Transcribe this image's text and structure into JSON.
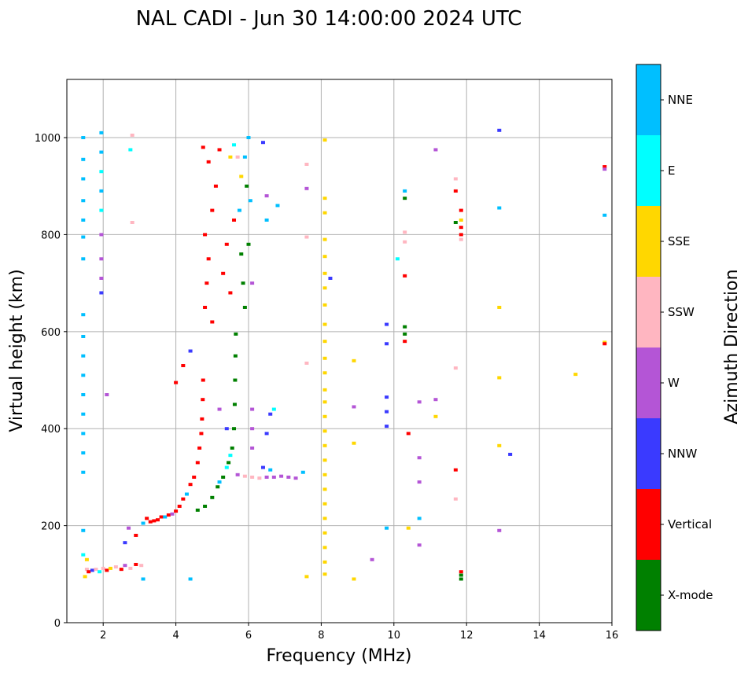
{
  "chart_data": {
    "type": "scatter",
    "title": "NAL CADI - Jun 30 14:00:00 2024 UTC",
    "xlabel": "Frequency (MHz)",
    "ylabel": "Virtual height (km)",
    "xlim": [
      1,
      16
    ],
    "ylim": [
      0,
      1120
    ],
    "xticks": [
      2,
      4,
      6,
      8,
      10,
      12,
      14,
      16
    ],
    "yticks": [
      0,
      200,
      400,
      600,
      800,
      1000
    ],
    "grid": true,
    "colorbar": {
      "title": "Azimuth Direction",
      "categories": [
        {
          "name": "X-mode",
          "color": "#008000"
        },
        {
          "name": "Vertical",
          "color": "#ff0000"
        },
        {
          "name": "NNW",
          "color": "#3a3aff"
        },
        {
          "name": "W",
          "color": "#b455d6"
        },
        {
          "name": "SSW",
          "color": "#ffb6c1"
        },
        {
          "name": "SSE",
          "color": "#ffd700"
        },
        {
          "name": "E",
          "color": "#00ffff"
        },
        {
          "name": "NNE",
          "color": "#00bfff"
        }
      ]
    },
    "points": [
      {
        "x": 1.5,
        "y": 95,
        "c": "SSE"
      },
      {
        "x": 1.55,
        "y": 110,
        "c": "SSW"
      },
      {
        "x": 1.6,
        "y": 105,
        "c": "Vertical"
      },
      {
        "x": 1.7,
        "y": 108,
        "c": "NNW"
      },
      {
        "x": 1.8,
        "y": 110,
        "c": "SSW"
      },
      {
        "x": 1.9,
        "y": 105,
        "c": "E"
      },
      {
        "x": 2.0,
        "y": 112,
        "c": "SSW"
      },
      {
        "x": 2.1,
        "y": 108,
        "c": "Vertical"
      },
      {
        "x": 2.2,
        "y": 112,
        "c": "SSE"
      },
      {
        "x": 2.35,
        "y": 115,
        "c": "SSW"
      },
      {
        "x": 2.5,
        "y": 110,
        "c": "Vertical"
      },
      {
        "x": 2.6,
        "y": 118,
        "c": "W"
      },
      {
        "x": 2.75,
        "y": 112,
        "c": "SSW"
      },
      {
        "x": 2.9,
        "y": 120,
        "c": "Vertical"
      },
      {
        "x": 3.05,
        "y": 118,
        "c": "SSW"
      },
      {
        "x": 1.45,
        "y": 140,
        "c": "E"
      },
      {
        "x": 1.55,
        "y": 130,
        "c": "SSE"
      },
      {
        "x": 2.6,
        "y": 165,
        "c": "NNW"
      },
      {
        "x": 2.7,
        "y": 195,
        "c": "W"
      },
      {
        "x": 2.9,
        "y": 180,
        "c": "Vertical"
      },
      {
        "x": 3.1,
        "y": 205,
        "c": "NNE"
      },
      {
        "x": 3.2,
        "y": 215,
        "c": "Vertical"
      },
      {
        "x": 3.3,
        "y": 208,
        "c": "Vertical"
      },
      {
        "x": 3.4,
        "y": 210,
        "c": "Vertical"
      },
      {
        "x": 3.5,
        "y": 212,
        "c": "Vertical"
      },
      {
        "x": 3.6,
        "y": 218,
        "c": "Vertical"
      },
      {
        "x": 3.7,
        "y": 218,
        "c": "NNE"
      },
      {
        "x": 3.8,
        "y": 222,
        "c": "Vertical"
      },
      {
        "x": 3.9,
        "y": 224,
        "c": "W"
      },
      {
        "x": 4.0,
        "y": 230,
        "c": "Vertical"
      },
      {
        "x": 4.1,
        "y": 240,
        "c": "Vertical"
      },
      {
        "x": 4.2,
        "y": 255,
        "c": "Vertical"
      },
      {
        "x": 4.3,
        "y": 265,
        "c": "NNE"
      },
      {
        "x": 4.4,
        "y": 285,
        "c": "Vertical"
      },
      {
        "x": 4.5,
        "y": 300,
        "c": "Vertical"
      },
      {
        "x": 4.6,
        "y": 330,
        "c": "Vertical"
      },
      {
        "x": 4.65,
        "y": 360,
        "c": "Vertical"
      },
      {
        "x": 4.7,
        "y": 390,
        "c": "Vertical"
      },
      {
        "x": 4.72,
        "y": 420,
        "c": "Vertical"
      },
      {
        "x": 4.74,
        "y": 460,
        "c": "Vertical"
      },
      {
        "x": 4.75,
        "y": 500,
        "c": "Vertical"
      },
      {
        "x": 4.2,
        "y": 530,
        "c": "Vertical"
      },
      {
        "x": 4.4,
        "y": 560,
        "c": "NNW"
      },
      {
        "x": 4.0,
        "y": 495,
        "c": "Vertical"
      },
      {
        "x": 4.6,
        "y": 232,
        "c": "X-mode"
      },
      {
        "x": 4.8,
        "y": 240,
        "c": "X-mode"
      },
      {
        "x": 5.0,
        "y": 258,
        "c": "X-mode"
      },
      {
        "x": 5.15,
        "y": 280,
        "c": "X-mode"
      },
      {
        "x": 5.3,
        "y": 300,
        "c": "X-mode"
      },
      {
        "x": 5.45,
        "y": 330,
        "c": "X-mode"
      },
      {
        "x": 5.55,
        "y": 360,
        "c": "X-mode"
      },
      {
        "x": 5.6,
        "y": 400,
        "c": "X-mode"
      },
      {
        "x": 5.62,
        "y": 450,
        "c": "X-mode"
      },
      {
        "x": 5.63,
        "y": 500,
        "c": "X-mode"
      },
      {
        "x": 5.64,
        "y": 550,
        "c": "X-mode"
      },
      {
        "x": 5.65,
        "y": 595,
        "c": "X-mode"
      },
      {
        "x": 5.2,
        "y": 290,
        "c": "NNE"
      },
      {
        "x": 5.4,
        "y": 320,
        "c": "E"
      },
      {
        "x": 5.5,
        "y": 345,
        "c": "E"
      },
      {
        "x": 5.7,
        "y": 305,
        "c": "W"
      },
      {
        "x": 5.9,
        "y": 302,
        "c": "SSW"
      },
      {
        "x": 6.1,
        "y": 300,
        "c": "SSW"
      },
      {
        "x": 6.3,
        "y": 298,
        "c": "SSW"
      },
      {
        "x": 6.5,
        "y": 300,
        "c": "W"
      },
      {
        "x": 6.7,
        "y": 300,
        "c": "W"
      },
      {
        "x": 6.9,
        "y": 302,
        "c": "W"
      },
      {
        "x": 7.1,
        "y": 300,
        "c": "W"
      },
      {
        "x": 7.3,
        "y": 298,
        "c": "W"
      },
      {
        "x": 7.5,
        "y": 310,
        "c": "NNE"
      },
      {
        "x": 6.4,
        "y": 320,
        "c": "NNW"
      },
      {
        "x": 6.6,
        "y": 315,
        "c": "NNE"
      },
      {
        "x": 6.1,
        "y": 360,
        "c": "W"
      },
      {
        "x": 6.1,
        "y": 400,
        "c": "W"
      },
      {
        "x": 6.1,
        "y": 440,
        "c": "W"
      },
      {
        "x": 5.2,
        "y": 440,
        "c": "W"
      },
      {
        "x": 5.4,
        "y": 400,
        "c": "NNW"
      },
      {
        "x": 6.5,
        "y": 390,
        "c": "NNW"
      },
      {
        "x": 6.6,
        "y": 430,
        "c": "NNW"
      },
      {
        "x": 6.7,
        "y": 440,
        "c": "E"
      },
      {
        "x": 4.8,
        "y": 650,
        "c": "Vertical"
      },
      {
        "x": 4.85,
        "y": 700,
        "c": "Vertical"
      },
      {
        "x": 4.9,
        "y": 750,
        "c": "Vertical"
      },
      {
        "x": 4.8,
        "y": 800,
        "c": "Vertical"
      },
      {
        "x": 5.0,
        "y": 850,
        "c": "Vertical"
      },
      {
        "x": 5.1,
        "y": 900,
        "c": "Vertical"
      },
      {
        "x": 4.9,
        "y": 950,
        "c": "Vertical"
      },
      {
        "x": 5.2,
        "y": 975,
        "c": "Vertical"
      },
      {
        "x": 5.3,
        "y": 720,
        "c": "Vertical"
      },
      {
        "x": 5.4,
        "y": 780,
        "c": "Vertical"
      },
      {
        "x": 5.5,
        "y": 680,
        "c": "Vertical"
      },
      {
        "x": 5.0,
        "y": 620,
        "c": "Vertical"
      },
      {
        "x": 4.75,
        "y": 980,
        "c": "Vertical"
      },
      {
        "x": 5.6,
        "y": 830,
        "c": "Vertical"
      },
      {
        "x": 5.8,
        "y": 760,
        "c": "X-mode"
      },
      {
        "x": 5.85,
        "y": 700,
        "c": "X-mode"
      },
      {
        "x": 5.9,
        "y": 650,
        "c": "X-mode"
      },
      {
        "x": 6.0,
        "y": 780,
        "c": "X-mode"
      },
      {
        "x": 5.95,
        "y": 900,
        "c": "X-mode"
      },
      {
        "x": 5.75,
        "y": 850,
        "c": "NNE"
      },
      {
        "x": 5.9,
        "y": 960,
        "c": "NNE"
      },
      {
        "x": 6.0,
        "y": 1000,
        "c": "NNE"
      },
      {
        "x": 5.6,
        "y": 985,
        "c": "E"
      },
      {
        "x": 6.05,
        "y": 870,
        "c": "NNE"
      },
      {
        "x": 6.1,
        "y": 700,
        "c": "W"
      },
      {
        "x": 6.5,
        "y": 880,
        "c": "W"
      },
      {
        "x": 6.8,
        "y": 860,
        "c": "NNE"
      },
      {
        "x": 6.5,
        "y": 830,
        "c": "NNE"
      },
      {
        "x": 6.4,
        "y": 990,
        "c": "NNW"
      },
      {
        "x": 5.5,
        "y": 960,
        "c": "SSE"
      },
      {
        "x": 5.7,
        "y": 960,
        "c": "SSW"
      },
      {
        "x": 5.8,
        "y": 920,
        "c": "SSE"
      },
      {
        "x": 1.45,
        "y": 1000,
        "c": "NNE"
      },
      {
        "x": 1.45,
        "y": 955,
        "c": "NNE"
      },
      {
        "x": 1.45,
        "y": 915,
        "c": "NNE"
      },
      {
        "x": 1.45,
        "y": 870,
        "c": "NNE"
      },
      {
        "x": 1.45,
        "y": 830,
        "c": "NNE"
      },
      {
        "x": 1.45,
        "y": 795,
        "c": "NNE"
      },
      {
        "x": 1.45,
        "y": 750,
        "c": "NNE"
      },
      {
        "x": 1.45,
        "y": 635,
        "c": "NNE"
      },
      {
        "x": 1.45,
        "y": 590,
        "c": "NNE"
      },
      {
        "x": 1.45,
        "y": 550,
        "c": "NNE"
      },
      {
        "x": 1.45,
        "y": 510,
        "c": "NNE"
      },
      {
        "x": 1.45,
        "y": 470,
        "c": "NNE"
      },
      {
        "x": 1.45,
        "y": 430,
        "c": "NNE"
      },
      {
        "x": 1.45,
        "y": 390,
        "c": "NNE"
      },
      {
        "x": 1.45,
        "y": 350,
        "c": "NNE"
      },
      {
        "x": 1.45,
        "y": 310,
        "c": "NNE"
      },
      {
        "x": 1.45,
        "y": 190,
        "c": "NNE"
      },
      {
        "x": 1.95,
        "y": 1010,
        "c": "NNE"
      },
      {
        "x": 1.95,
        "y": 970,
        "c": "NNE"
      },
      {
        "x": 1.95,
        "y": 930,
        "c": "E"
      },
      {
        "x": 1.95,
        "y": 890,
        "c": "NNE"
      },
      {
        "x": 1.95,
        "y": 850,
        "c": "E"
      },
      {
        "x": 1.95,
        "y": 800,
        "c": "W"
      },
      {
        "x": 1.95,
        "y": 750,
        "c": "W"
      },
      {
        "x": 1.95,
        "y": 710,
        "c": "W"
      },
      {
        "x": 1.95,
        "y": 680,
        "c": "NNW"
      },
      {
        "x": 2.75,
        "y": 975,
        "c": "E"
      },
      {
        "x": 2.8,
        "y": 1005,
        "c": "SSW"
      },
      {
        "x": 2.8,
        "y": 825,
        "c": "SSW"
      },
      {
        "x": 2.1,
        "y": 470,
        "c": "W"
      },
      {
        "x": 4.4,
        "y": 90,
        "c": "NNE"
      },
      {
        "x": 3.1,
        "y": 90,
        "c": "NNE"
      },
      {
        "x": 8.1,
        "y": 995,
        "c": "SSE"
      },
      {
        "x": 8.1,
        "y": 875,
        "c": "SSE"
      },
      {
        "x": 8.1,
        "y": 845,
        "c": "SSE"
      },
      {
        "x": 8.1,
        "y": 790,
        "c": "SSE"
      },
      {
        "x": 8.1,
        "y": 755,
        "c": "SSE"
      },
      {
        "x": 8.1,
        "y": 720,
        "c": "SSE"
      },
      {
        "x": 8.1,
        "y": 690,
        "c": "SSE"
      },
      {
        "x": 8.1,
        "y": 655,
        "c": "SSE"
      },
      {
        "x": 8.1,
        "y": 615,
        "c": "SSE"
      },
      {
        "x": 8.1,
        "y": 580,
        "c": "SSE"
      },
      {
        "x": 8.1,
        "y": 545,
        "c": "SSE"
      },
      {
        "x": 8.1,
        "y": 515,
        "c": "SSE"
      },
      {
        "x": 8.1,
        "y": 480,
        "c": "SSE"
      },
      {
        "x": 8.1,
        "y": 455,
        "c": "SSE"
      },
      {
        "x": 8.1,
        "y": 425,
        "c": "SSE"
      },
      {
        "x": 8.1,
        "y": 395,
        "c": "SSE"
      },
      {
        "x": 8.1,
        "y": 365,
        "c": "SSE"
      },
      {
        "x": 8.1,
        "y": 335,
        "c": "SSE"
      },
      {
        "x": 8.1,
        "y": 305,
        "c": "SSE"
      },
      {
        "x": 8.1,
        "y": 275,
        "c": "SSE"
      },
      {
        "x": 8.1,
        "y": 245,
        "c": "SSE"
      },
      {
        "x": 8.1,
        "y": 215,
        "c": "SSE"
      },
      {
        "x": 8.1,
        "y": 185,
        "c": "SSE"
      },
      {
        "x": 8.1,
        "y": 155,
        "c": "SSE"
      },
      {
        "x": 8.1,
        "y": 125,
        "c": "SSE"
      },
      {
        "x": 8.1,
        "y": 100,
        "c": "SSE"
      },
      {
        "x": 7.6,
        "y": 95,
        "c": "SSE"
      },
      {
        "x": 7.6,
        "y": 945,
        "c": "SSW"
      },
      {
        "x": 7.6,
        "y": 895,
        "c": "W"
      },
      {
        "x": 7.6,
        "y": 795,
        "c": "SSW"
      },
      {
        "x": 7.6,
        "y": 535,
        "c": "SSW"
      },
      {
        "x": 8.25,
        "y": 710,
        "c": "NNW"
      },
      {
        "x": 8.9,
        "y": 540,
        "c": "SSE"
      },
      {
        "x": 8.9,
        "y": 445,
        "c": "W"
      },
      {
        "x": 8.9,
        "y": 370,
        "c": "SSE"
      },
      {
        "x": 8.9,
        "y": 90,
        "c": "SSE"
      },
      {
        "x": 9.4,
        "y": 130,
        "c": "W"
      },
      {
        "x": 9.8,
        "y": 615,
        "c": "NNW"
      },
      {
        "x": 9.8,
        "y": 575,
        "c": "NNW"
      },
      {
        "x": 9.8,
        "y": 465,
        "c": "NNW"
      },
      {
        "x": 9.8,
        "y": 435,
        "c": "NNW"
      },
      {
        "x": 9.8,
        "y": 405,
        "c": "NNW"
      },
      {
        "x": 9.8,
        "y": 195,
        "c": "NNE"
      },
      {
        "x": 10.3,
        "y": 890,
        "c": "NNE"
      },
      {
        "x": 10.3,
        "y": 875,
        "c": "X-mode"
      },
      {
        "x": 10.3,
        "y": 805,
        "c": "SSW"
      },
      {
        "x": 10.3,
        "y": 785,
        "c": "SSW"
      },
      {
        "x": 10.1,
        "y": 750,
        "c": "E"
      },
      {
        "x": 10.3,
        "y": 715,
        "c": "Vertical"
      },
      {
        "x": 10.3,
        "y": 610,
        "c": "X-mode"
      },
      {
        "x": 10.3,
        "y": 595,
        "c": "X-mode"
      },
      {
        "x": 10.3,
        "y": 580,
        "c": "Vertical"
      },
      {
        "x": 10.4,
        "y": 390,
        "c": "Vertical"
      },
      {
        "x": 10.4,
        "y": 195,
        "c": "SSE"
      },
      {
        "x": 10.7,
        "y": 455,
        "c": "W"
      },
      {
        "x": 10.7,
        "y": 340,
        "c": "W"
      },
      {
        "x": 10.7,
        "y": 290,
        "c": "W"
      },
      {
        "x": 10.7,
        "y": 215,
        "c": "NNE"
      },
      {
        "x": 10.7,
        "y": 160,
        "c": "W"
      },
      {
        "x": 11.15,
        "y": 975,
        "c": "W"
      },
      {
        "x": 11.15,
        "y": 460,
        "c": "W"
      },
      {
        "x": 11.15,
        "y": 425,
        "c": "SSE"
      },
      {
        "x": 11.7,
        "y": 915,
        "c": "SSW"
      },
      {
        "x": 11.7,
        "y": 890,
        "c": "Vertical"
      },
      {
        "x": 11.7,
        "y": 825,
        "c": "X-mode"
      },
      {
        "x": 11.85,
        "y": 850,
        "c": "Vertical"
      },
      {
        "x": 11.85,
        "y": 830,
        "c": "SSE"
      },
      {
        "x": 11.85,
        "y": 815,
        "c": "Vertical"
      },
      {
        "x": 11.85,
        "y": 800,
        "c": "Vertical"
      },
      {
        "x": 11.85,
        "y": 790,
        "c": "SSW"
      },
      {
        "x": 11.7,
        "y": 525,
        "c": "SSW"
      },
      {
        "x": 11.7,
        "y": 315,
        "c": "Vertical"
      },
      {
        "x": 11.7,
        "y": 255,
        "c": "SSW"
      },
      {
        "x": 11.85,
        "y": 105,
        "c": "Vertical"
      },
      {
        "x": 11.85,
        "y": 98,
        "c": "X-mode"
      },
      {
        "x": 11.85,
        "y": 90,
        "c": "X-mode"
      },
      {
        "x": 12.9,
        "y": 1015,
        "c": "NNW"
      },
      {
        "x": 12.9,
        "y": 855,
        "c": "NNE"
      },
      {
        "x": 12.9,
        "y": 650,
        "c": "SSE"
      },
      {
        "x": 12.9,
        "y": 505,
        "c": "SSE"
      },
      {
        "x": 12.9,
        "y": 365,
        "c": "SSE"
      },
      {
        "x": 12.9,
        "y": 190,
        "c": "W"
      },
      {
        "x": 13.2,
        "y": 347,
        "c": "NNW"
      },
      {
        "x": 15.0,
        "y": 512,
        "c": "SSE"
      },
      {
        "x": 15.8,
        "y": 940,
        "c": "Vertical"
      },
      {
        "x": 15.8,
        "y": 935,
        "c": "W"
      },
      {
        "x": 15.8,
        "y": 840,
        "c": "NNE"
      },
      {
        "x": 15.8,
        "y": 578,
        "c": "SSE"
      },
      {
        "x": 15.8,
        "y": 575,
        "c": "Vertical"
      }
    ]
  }
}
